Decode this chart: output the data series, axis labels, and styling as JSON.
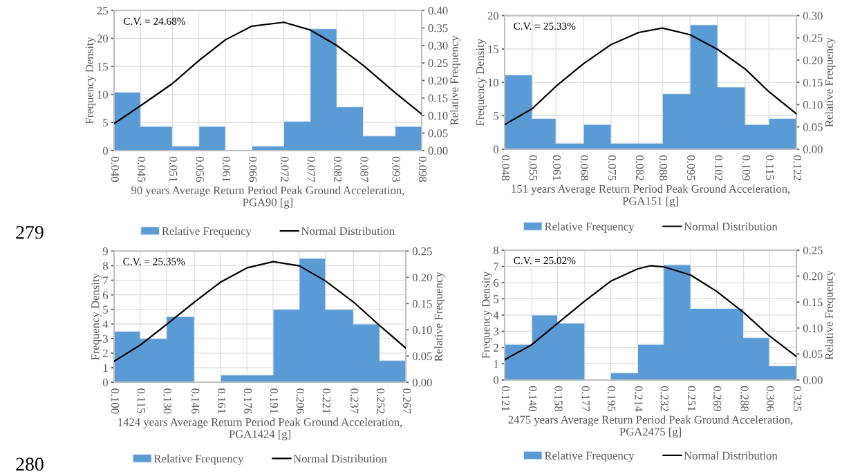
{
  "chart_data": [
    {
      "type": "histogram",
      "xlabel": "90 years Average Return Period Peak Ground Acceleration,\nPGA90 [g]",
      "ylabel": "Frequency Density",
      "y2label": "Relative Frequency",
      "annotations": [
        "C.V. = 24.68%",
        "279"
      ],
      "bins": [
        0.04,
        0.045,
        0.051,
        0.056,
        0.061,
        0.066,
        0.072,
        0.077,
        0.082,
        0.087,
        0.093,
        0.098
      ],
      "xticks": [
        {
          "value": 0.04,
          "label": "0.040"
        },
        0.045,
        0.051,
        0.056,
        0.061,
        0.066,
        0.072,
        0.077,
        0.082,
        0.087,
        0.093,
        0.098
      ],
      "series": [
        {
          "name": "Relative Frequency",
          "color": "#5b9bd5",
          "values": [
            10.4,
            4.3,
            0.8,
            4.3,
            0,
            0.8,
            5.2,
            21.7,
            7.8,
            2.6,
            4.3
          ]
        },
        {
          "name": "Normal Distribution",
          "type": "line",
          "axis": "y2",
          "color": "#000000",
          "x": [
            0.04,
            0.045,
            0.051,
            0.056,
            0.061,
            0.066,
            0.072,
            0.077,
            0.082,
            0.087,
            0.093,
            0.098
          ],
          "values": [
            0.077,
            0.128,
            0.191,
            0.257,
            0.316,
            0.355,
            0.366,
            0.344,
            0.3,
            0.243,
            0.165,
            0.104
          ]
        }
      ],
      "xlim": [
        0.04,
        0.098
      ],
      "ylim": [
        0,
        25
      ],
      "yticks": [
        0,
        5,
        10,
        15,
        20,
        25
      ],
      "y2lim": [
        0,
        0.4
      ],
      "y2ticks": [
        {
          "value": 0,
          "label": "0.00"
        },
        0.05,
        {
          "value": 0.1,
          "label": "0.10"
        },
        0.15,
        {
          "value": 0.2,
          "label": "0.20"
        },
        0.25,
        {
          "value": 0.3,
          "label": "0.30"
        },
        0.35,
        {
          "value": 0.4,
          "label": "0.40"
        }
      ],
      "grid": true,
      "legend": "bottom"
    },
    {
      "type": "histogram",
      "xlabel": "151 years Average Return Period Peak Ground Acceleration,\nPGA151 [g]",
      "ylabel": "Frequency Density",
      "y2label": "Relative Frequency",
      "annotations": [
        "C.V. = 25.33%"
      ],
      "bins": [
        0.048,
        0.055,
        0.061,
        0.068,
        0.075,
        0.082,
        0.088,
        0.095,
        0.102,
        0.109,
        0.115,
        0.122
      ],
      "xticks": [
        0.048,
        0.055,
        0.061,
        0.068,
        0.075,
        0.082,
        0.088,
        0.095,
        0.102,
        0.109,
        0.115,
        0.122
      ],
      "series": [
        {
          "name": "Relative Frequency",
          "color": "#5b9bd5",
          "values": [
            11.1,
            4.6,
            0.9,
            3.7,
            0.9,
            0.9,
            8.3,
            18.6,
            9.3,
            3.7,
            4.6
          ]
        },
        {
          "name": "Normal Distribution",
          "type": "line",
          "axis": "y2",
          "color": "#000000",
          "x": [
            0.048,
            0.055,
            0.061,
            0.068,
            0.075,
            0.082,
            0.088,
            0.095,
            0.102,
            0.109,
            0.115,
            0.122
          ],
          "values": [
            0.055,
            0.091,
            0.141,
            0.192,
            0.235,
            0.262,
            0.272,
            0.257,
            0.224,
            0.18,
            0.129,
            0.079
          ]
        }
      ],
      "xlim": [
        0.048,
        0.122
      ],
      "ylim": [
        0,
        20
      ],
      "yticks": [
        0,
        5,
        10,
        15,
        20
      ],
      "y2lim": [
        0,
        0.3
      ],
      "y2ticks": [
        {
          "value": 0,
          "label": "0.00"
        },
        0.05,
        {
          "value": 0.1,
          "label": "0.10"
        },
        0.15,
        {
          "value": 0.2,
          "label": "0.20"
        },
        0.25,
        {
          "value": 0.3,
          "label": "0.30"
        }
      ],
      "grid": true,
      "legend": "bottom"
    },
    {
      "type": "histogram",
      "xlabel": "1424 years Average Return Period Peak Ground Acceleration,\nPGA1424 [g]",
      "ylabel": "Frequency Density",
      "y2label": "Relative Frequency",
      "annotations": [
        "C.V. = 25.35%",
        "280"
      ],
      "bins": [
        0.1,
        0.115,
        0.13,
        0.146,
        0.161,
        0.176,
        0.191,
        0.206,
        0.221,
        0.237,
        0.252,
        0.267
      ],
      "xticks": [
        {
          "value": 0.1,
          "label": "0.100"
        },
        0.115,
        {
          "value": 0.13,
          "label": "0.130"
        },
        0.146,
        0.161,
        0.176,
        0.191,
        0.206,
        0.221,
        0.237,
        0.252,
        0.267
      ],
      "series": [
        {
          "name": "Relative Frequency",
          "color": "#5b9bd5",
          "values": [
            3.5,
            3.0,
            4.5,
            0,
            0.5,
            0.5,
            5.0,
            8.5,
            5.0,
            4.0,
            1.5
          ]
        },
        {
          "name": "Normal Distribution",
          "type": "line",
          "axis": "y2",
          "color": "#000000",
          "x": [
            0.1,
            0.115,
            0.13,
            0.146,
            0.161,
            0.176,
            0.191,
            0.206,
            0.221,
            0.237,
            0.252,
            0.267
          ],
          "values": [
            0.04,
            0.071,
            0.11,
            0.153,
            0.191,
            0.218,
            0.23,
            0.222,
            0.193,
            0.153,
            0.108,
            0.065
          ]
        }
      ],
      "xlim": [
        0.1,
        0.267
      ],
      "ylim": [
        0,
        9
      ],
      "yticks": [
        0,
        1,
        2,
        3,
        4,
        5,
        6,
        7,
        8,
        9
      ],
      "y2lim": [
        0,
        0.25
      ],
      "y2ticks": [
        {
          "value": 0,
          "label": "0.00"
        },
        0.05,
        {
          "value": 0.1,
          "label": "0.10"
        },
        0.15,
        {
          "value": 0.2,
          "label": "0.20"
        },
        0.25
      ],
      "grid": true,
      "legend": "bottom"
    },
    {
      "type": "histogram",
      "xlabel": "2475 years Average Return Period Peak Ground Acceleration,\nPGA2475 [g]",
      "ylabel": "Frequency Density",
      "y2label": "Relative Frequency",
      "annotations": [
        "C.V. = 25.02%"
      ],
      "bins": [
        0.121,
        0.14,
        0.158,
        0.177,
        0.195,
        0.214,
        0.232,
        0.251,
        0.269,
        0.288,
        0.306,
        0.325
      ],
      "xticks": [
        0.121,
        {
          "value": 0.14,
          "label": "0.140"
        },
        0.158,
        0.177,
        0.195,
        0.214,
        0.232,
        0.251,
        0.269,
        0.288,
        0.306,
        0.325
      ],
      "series": [
        {
          "name": "Relative Frequency",
          "color": "#5b9bd5",
          "values": [
            2.2,
            4.0,
            3.5,
            0,
            0.43,
            2.2,
            7.1,
            4.4,
            4.4,
            2.6,
            0.87
          ]
        },
        {
          "name": "Normal Distribution",
          "type": "line",
          "axis": "y2",
          "color": "#000000",
          "x": [
            0.121,
            0.14,
            0.158,
            0.177,
            0.195,
            0.214,
            0.223,
            0.232,
            0.251,
            0.269,
            0.288,
            0.306,
            0.325
          ],
          "values": [
            0.039,
            0.068,
            0.109,
            0.152,
            0.19,
            0.214,
            0.22,
            0.218,
            0.202,
            0.171,
            0.13,
            0.085,
            0.045
          ]
        }
      ],
      "xlim": [
        0.121,
        0.325
      ],
      "ylim": [
        0,
        8
      ],
      "yticks": [
        0,
        1,
        2,
        3,
        4,
        5,
        6,
        7,
        8
      ],
      "y2lim": [
        0,
        0.25
      ],
      "y2ticks": [
        {
          "value": 0,
          "label": "0.00"
        },
        0.05,
        {
          "value": 0.1,
          "label": "0.10"
        },
        0.15,
        {
          "value": 0.2,
          "label": "0.20"
        },
        0.25
      ],
      "grid": true,
      "legend": "bottom"
    }
  ]
}
